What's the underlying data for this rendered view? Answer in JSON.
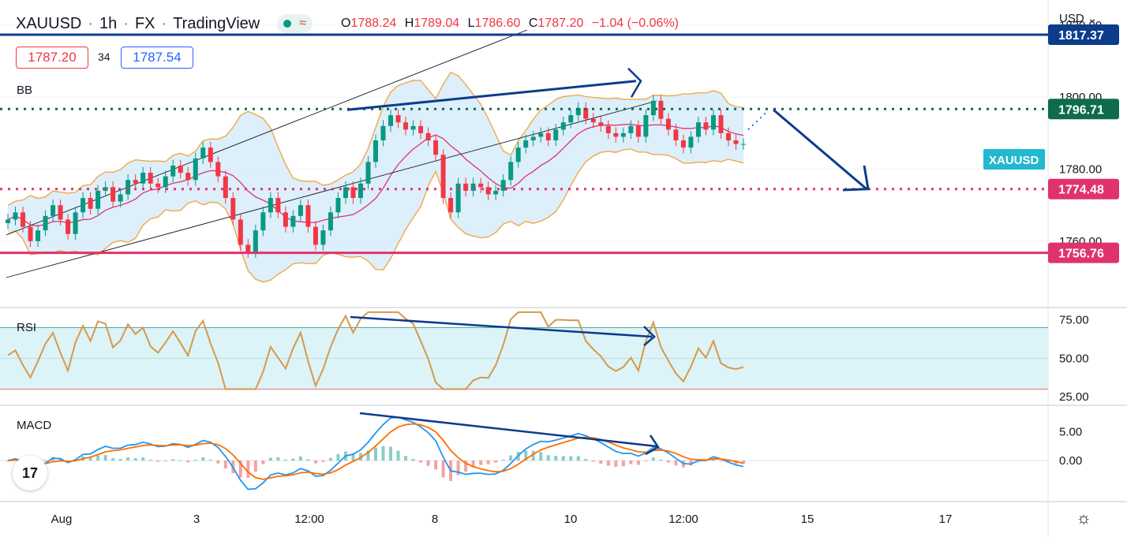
{
  "header": {
    "symbol": "XAUUSD",
    "interval": "1h",
    "exchange": "FX",
    "source": "TradingView",
    "ohlc": {
      "o_label": "O",
      "o": "1788.24",
      "h_label": "H",
      "h": "1789.04",
      "l_label": "L",
      "l": "1786.60",
      "c_label": "C",
      "c": "1787.20",
      "chg": "−1.04 (−0.06%)"
    },
    "bid": "1787.20",
    "spread": "34",
    "ask": "1787.54"
  },
  "currency": "USD",
  "pane_labels": {
    "bb": "BB",
    "rsi": "RSI",
    "macd": "MACD"
  },
  "symbol_tag": "XAUUSD",
  "colors": {
    "bg": "#ffffff",
    "grid": "#f0f3fa",
    "bull": "#089981",
    "bear": "#f23645",
    "bb_fill": "#d6ecfa",
    "bb_line": "#f2a33a",
    "bb_mid": "#e0336d",
    "resist": "#0c3c8c",
    "pivot": "#0e6b4e",
    "support_mid": "#e0336d",
    "support": "#e0336d",
    "rsi": "#d49a4a",
    "rsi_band": "#dcf3f7",
    "macd": "#2196f3",
    "signal": "#ff6d00",
    "arrow": "#0c3c8c",
    "tag": "#22b8cf"
  },
  "chart_data": {
    "type": "candlestick",
    "title": "XAUUSD · 1h · FX",
    "x_tick_labels": [
      "Aug",
      "3",
      "12:00",
      "8",
      "10",
      "12:00",
      "15",
      "17"
    ],
    "price_axis": {
      "ticks": [
        "1820.00",
        "1800.00",
        "1780.00",
        "1760.00"
      ],
      "ylim": [
        1742,
        1827
      ]
    },
    "rsi_axis": {
      "ticks": [
        "75.00",
        "50.00",
        "25.00"
      ],
      "ylim": [
        20,
        82
      ],
      "band": [
        30,
        70
      ]
    },
    "macd_axis": {
      "ticks": [
        "5.00",
        "0.00"
      ],
      "ylim": [
        -7,
        9.5
      ]
    },
    "levels": [
      {
        "name": "resistance",
        "value": 1817.37,
        "label": "1817.37"
      },
      {
        "name": "pivot",
        "value": 1796.71,
        "label": "1796.71"
      },
      {
        "name": "support-1",
        "value": 1774.48,
        "label": "1774.48"
      },
      {
        "name": "support-2",
        "value": 1756.76,
        "label": "1756.76"
      }
    ],
    "close": [
      1766,
      1768,
      1764,
      1760,
      1763,
      1767,
      1770,
      1766,
      1762,
      1768,
      1772,
      1769,
      1774,
      1775,
      1771,
      1773,
      1777,
      1776,
      1779,
      1776,
      1775,
      1778,
      1781,
      1779,
      1777,
      1783,
      1786,
      1782,
      1778,
      1772,
      1766,
      1759,
      1757,
      1763,
      1768,
      1772,
      1768,
      1764,
      1767,
      1770,
      1764,
      1759,
      1763,
      1768,
      1772,
      1775,
      1772,
      1776,
      1782,
      1788,
      1792,
      1795,
      1793,
      1791,
      1792,
      1790,
      1788,
      1784,
      1772,
      1768,
      1776,
      1774,
      1776,
      1775,
      1773,
      1774,
      1777,
      1782,
      1786,
      1788,
      1789,
      1790,
      1788,
      1791,
      1793,
      1795,
      1797,
      1794,
      1793,
      1792,
      1790,
      1789,
      1790,
      1792,
      1789,
      1795,
      1799,
      1794,
      1791,
      1788,
      1786,
      1789,
      1793,
      1791,
      1795,
      1790,
      1788,
      1787,
      1787
    ]
  },
  "overlays": {
    "price_tags": [
      {
        "level": "resistance",
        "text": "1817.37"
      },
      {
        "level": "pivot",
        "text": "1796.71"
      },
      {
        "level": "support-1",
        "text": "1774.48"
      },
      {
        "level": "support-2",
        "text": "1756.76"
      }
    ]
  }
}
